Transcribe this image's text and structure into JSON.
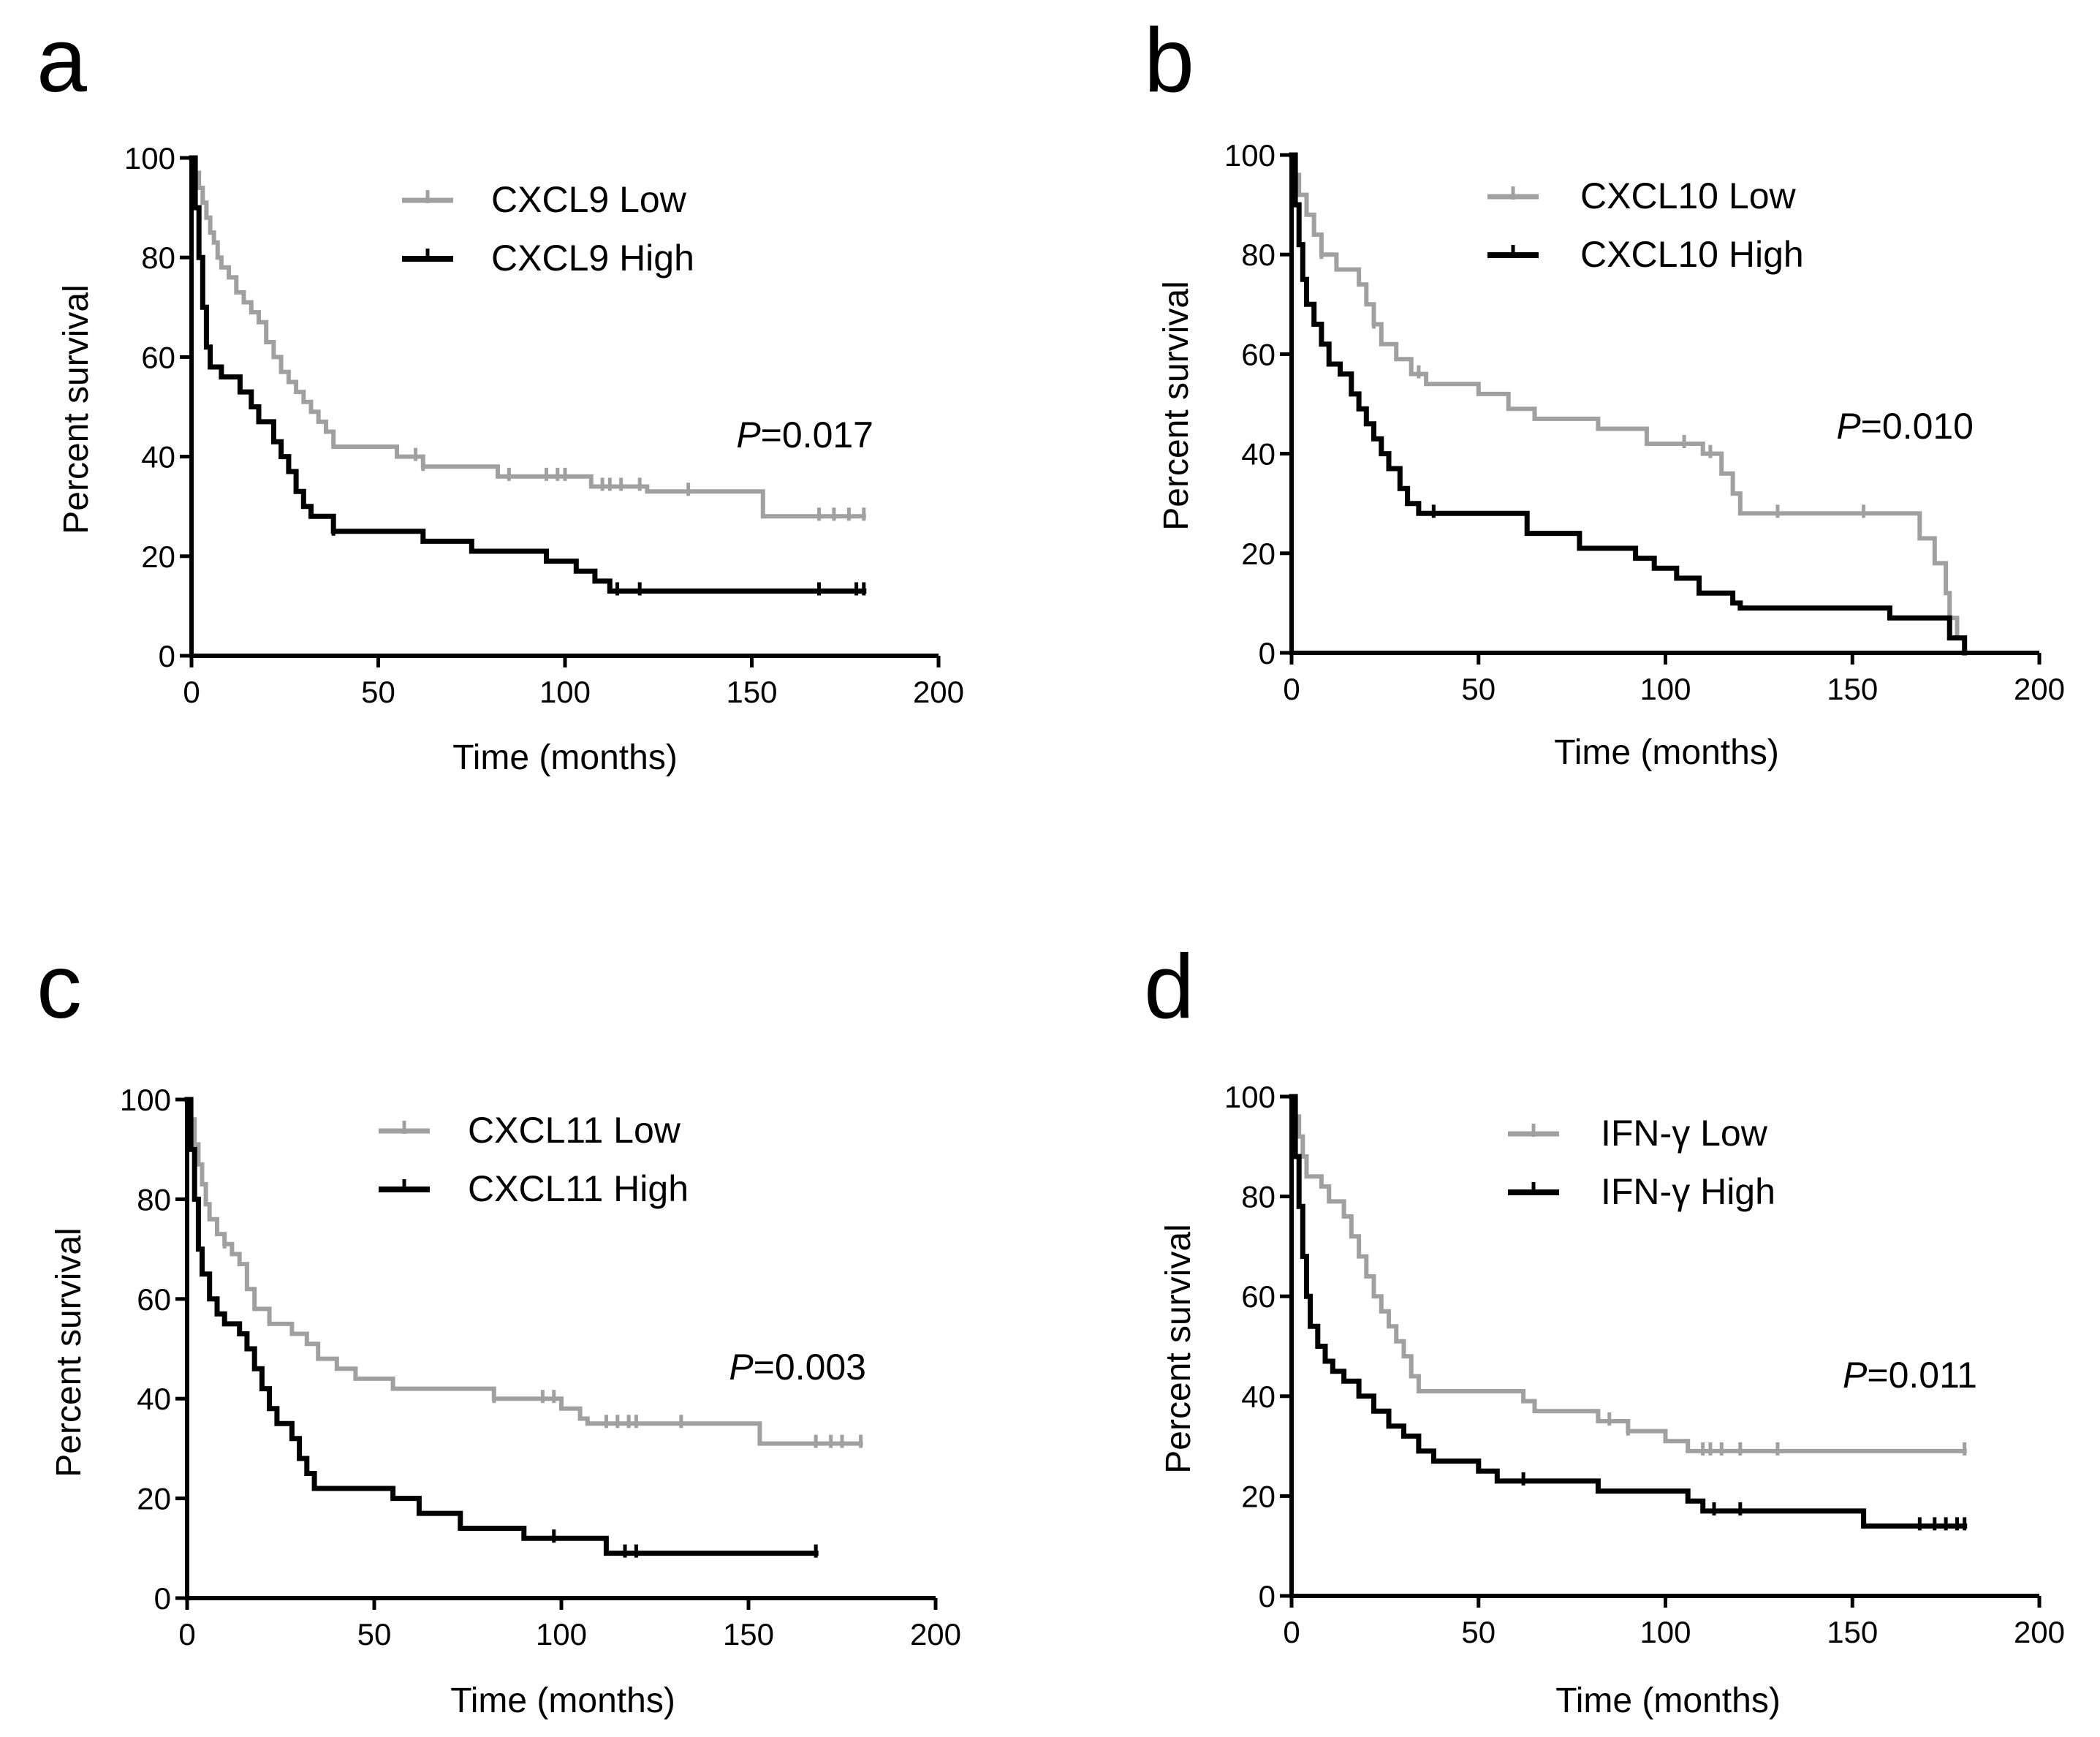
{
  "chart_data": [
    {
      "type": "line",
      "panel": "a",
      "title": "",
      "xlabel": "Time (months)",
      "ylabel": "Percent survival",
      "xlim": [
        0,
        200
      ],
      "ylim": [
        0,
        100
      ],
      "xticks": [
        "0",
        "50",
        "100",
        "150",
        "200"
      ],
      "yticks": [
        "0",
        "20",
        "40",
        "60",
        "80",
        "100"
      ],
      "pvalue": {
        "prefix": "P",
        "text": "=0.017"
      },
      "colors": {
        "low": "#a0a0a0",
        "high": "#000000"
      },
      "series": [
        {
          "name": "CXCL9 Low",
          "color": "#a0a0a0",
          "steps": [
            [
              0,
              100
            ],
            [
              1,
              97
            ],
            [
              2,
              94
            ],
            [
              3,
              91
            ],
            [
              4,
              88
            ],
            [
              5,
              85
            ],
            [
              6,
              83
            ],
            [
              7,
              80
            ],
            [
              8,
              78
            ],
            [
              10,
              76
            ],
            [
              12,
              73
            ],
            [
              14,
              71
            ],
            [
              16,
              69
            ],
            [
              18,
              67
            ],
            [
              20,
              63
            ],
            [
              22,
              60
            ],
            [
              24,
              57
            ],
            [
              26,
              55
            ],
            [
              28,
              53
            ],
            [
              30,
              51
            ],
            [
              32,
              49
            ],
            [
              34,
              47
            ],
            [
              36,
              45
            ],
            [
              38,
              42
            ],
            [
              55,
              40
            ],
            [
              62,
              38
            ],
            [
              82,
              36
            ],
            [
              107,
              34
            ],
            [
              122,
              33
            ],
            [
              153,
              28
            ]
          ],
          "end": 180,
          "censor": [
            60,
            62,
            85,
            95,
            98,
            100,
            110,
            112,
            115,
            120,
            133,
            168,
            172,
            176,
            180
          ]
        },
        {
          "name": "CXCL9 High",
          "color": "#000000",
          "steps": [
            [
              0,
              100
            ],
            [
              1,
              90
            ],
            [
              2,
              80
            ],
            [
              3,
              70
            ],
            [
              4,
              62
            ],
            [
              5,
              58
            ],
            [
              8,
              56
            ],
            [
              13,
              53
            ],
            [
              16,
              50
            ],
            [
              18,
              47
            ],
            [
              22,
              43
            ],
            [
              24,
              40
            ],
            [
              26,
              37
            ],
            [
              28,
              33
            ],
            [
              30,
              30
            ],
            [
              32,
              28
            ],
            [
              38,
              25
            ],
            [
              62,
              23
            ],
            [
              75,
              21
            ],
            [
              95,
              19
            ],
            [
              103,
              17
            ],
            [
              108,
              15
            ],
            [
              112,
              13
            ]
          ],
          "end": 180,
          "censor": [
            38,
            114,
            120,
            168,
            178,
            180
          ]
        }
      ]
    },
    {
      "type": "line",
      "panel": "b",
      "title": "",
      "xlabel": "Time (months)",
      "ylabel": "Percent survival",
      "xlim": [
        0,
        200
      ],
      "ylim": [
        0,
        100
      ],
      "xticks": [
        "0",
        "50",
        "100",
        "150",
        "200"
      ],
      "yticks": [
        "0",
        "20",
        "40",
        "60",
        "80",
        "100"
      ],
      "pvalue": {
        "prefix": "P",
        "text": "=0.010"
      },
      "colors": {
        "low": "#a0a0a0",
        "high": "#000000"
      },
      "series": [
        {
          "name": "CXCL10 Low",
          "color": "#a0a0a0",
          "steps": [
            [
              0,
              100
            ],
            [
              1,
              96
            ],
            [
              2,
              92
            ],
            [
              4,
              88
            ],
            [
              6,
              84
            ],
            [
              8,
              80
            ],
            [
              12,
              77
            ],
            [
              18,
              74
            ],
            [
              20,
              70
            ],
            [
              22,
              66
            ],
            [
              24,
              62
            ],
            [
              28,
              59
            ],
            [
              32,
              56
            ],
            [
              36,
              54
            ],
            [
              50,
              52
            ],
            [
              58,
              49
            ],
            [
              65,
              47
            ],
            [
              82,
              45
            ],
            [
              95,
              42
            ],
            [
              110,
              40
            ],
            [
              115,
              36
            ],
            [
              118,
              32
            ],
            [
              120,
              28
            ],
            [
              168,
              23
            ],
            [
              172,
              18
            ],
            [
              175,
              12
            ],
            [
              176,
              7
            ],
            [
              178,
              3
            ],
            [
              180,
              0
            ]
          ],
          "end": 180,
          "censor": [
            8,
            22,
            34,
            105,
            112,
            130,
            153
          ]
        },
        {
          "name": "CXCL10 High",
          "color": "#000000",
          "steps": [
            [
              0,
              100
            ],
            [
              1,
              90
            ],
            [
              2,
              82
            ],
            [
              3,
              75
            ],
            [
              4,
              70
            ],
            [
              6,
              66
            ],
            [
              8,
              62
            ],
            [
              10,
              58
            ],
            [
              13,
              56
            ],
            [
              16,
              52
            ],
            [
              18,
              49
            ],
            [
              20,
              46
            ],
            [
              22,
              43
            ],
            [
              24,
              40
            ],
            [
              26,
              37
            ],
            [
              29,
              33
            ],
            [
              31,
              30
            ],
            [
              34,
              28
            ],
            [
              63,
              24
            ],
            [
              77,
              21
            ],
            [
              92,
              19
            ],
            [
              97,
              17
            ],
            [
              103,
              15
            ],
            [
              109,
              12
            ],
            [
              118,
              10
            ],
            [
              120,
              9
            ],
            [
              160,
              7
            ],
            [
              176,
              3
            ],
            [
              180,
              0
            ]
          ],
          "end": 180,
          "censor": [
            38
          ]
        }
      ]
    },
    {
      "type": "line",
      "panel": "c",
      "title": "",
      "xlabel": "Time (months)",
      "ylabel": "Percent survival",
      "xlim": [
        0,
        200
      ],
      "ylim": [
        0,
        100
      ],
      "xticks": [
        "0",
        "50",
        "100",
        "150",
        "200"
      ],
      "yticks": [
        "0",
        "20",
        "40",
        "60",
        "80",
        "100"
      ],
      "pvalue": {
        "prefix": "P",
        "text": "=0.003"
      },
      "colors": {
        "low": "#a0a0a0",
        "high": "#000000"
      },
      "series": [
        {
          "name": "CXCL11 Low",
          "color": "#a0a0a0",
          "steps": [
            [
              0,
              100
            ],
            [
              1,
              96
            ],
            [
              2,
              91
            ],
            [
              3,
              87
            ],
            [
              4,
              83
            ],
            [
              5,
              79
            ],
            [
              6,
              76
            ],
            [
              8,
              73
            ],
            [
              10,
              71
            ],
            [
              12,
              69
            ],
            [
              14,
              67
            ],
            [
              16,
              62
            ],
            [
              18,
              58
            ],
            [
              22,
              55
            ],
            [
              28,
              53
            ],
            [
              32,
              51
            ],
            [
              35,
              48
            ],
            [
              40,
              46
            ],
            [
              45,
              44
            ],
            [
              55,
              42
            ],
            [
              82,
              40
            ],
            [
              100,
              38
            ],
            [
              105,
              36
            ],
            [
              107,
              35
            ],
            [
              153,
              31
            ]
          ],
          "end": 180,
          "censor": [
            10,
            82,
            95,
            98,
            112,
            115,
            118,
            120,
            132,
            168,
            172,
            175,
            180
          ]
        },
        {
          "name": "CXCL11 High",
          "color": "#000000",
          "steps": [
            [
              0,
              100
            ],
            [
              1,
              90
            ],
            [
              2,
              80
            ],
            [
              3,
              70
            ],
            [
              4,
              65
            ],
            [
              6,
              60
            ],
            [
              8,
              57
            ],
            [
              10,
              55
            ],
            [
              14,
              53
            ],
            [
              16,
              50
            ],
            [
              18,
              46
            ],
            [
              20,
              42
            ],
            [
              22,
              38
            ],
            [
              24,
              35
            ],
            [
              28,
              32
            ],
            [
              30,
              28
            ],
            [
              32,
              25
            ],
            [
              34,
              22
            ],
            [
              55,
              20
            ],
            [
              62,
              17
            ],
            [
              73,
              14
            ],
            [
              90,
              12
            ],
            [
              112,
              9
            ]
          ],
          "end": 168,
          "censor": [
            98,
            117,
            120,
            168
          ]
        }
      ]
    },
    {
      "type": "line",
      "panel": "d",
      "title": "",
      "xlabel": "Time (months)",
      "ylabel": "Percent survival",
      "xlim": [
        0,
        200
      ],
      "ylim": [
        0,
        100
      ],
      "xticks": [
        "0",
        "50",
        "100",
        "150",
        "200"
      ],
      "yticks": [
        "0",
        "20",
        "40",
        "60",
        "80",
        "100"
      ],
      "pvalue": {
        "prefix": "P",
        "text": "=0.011"
      },
      "colors": {
        "low": "#a0a0a0",
        "high": "#000000"
      },
      "series": [
        {
          "name": "IFN-γ Low",
          "color": "#a0a0a0",
          "steps": [
            [
              0,
              100
            ],
            [
              1,
              96
            ],
            [
              2,
              92
            ],
            [
              3,
              88
            ],
            [
              4,
              84
            ],
            [
              8,
              82
            ],
            [
              10,
              79
            ],
            [
              14,
              76
            ],
            [
              16,
              72
            ],
            [
              18,
              68
            ],
            [
              20,
              64
            ],
            [
              22,
              60
            ],
            [
              24,
              57
            ],
            [
              26,
              54
            ],
            [
              28,
              51
            ],
            [
              30,
              48
            ],
            [
              32,
              44
            ],
            [
              34,
              41
            ],
            [
              62,
              39
            ],
            [
              65,
              37
            ],
            [
              82,
              35
            ],
            [
              90,
              33
            ],
            [
              100,
              31
            ],
            [
              106,
              29
            ]
          ],
          "end": 180,
          "censor": [
            85,
            90,
            110,
            112,
            115,
            120,
            130,
            180
          ]
        },
        {
          "name": "IFN-γ High",
          "color": "#000000",
          "steps": [
            [
              0,
              100
            ],
            [
              1,
              88
            ],
            [
              2,
              78
            ],
            [
              3,
              68
            ],
            [
              4,
              60
            ],
            [
              5,
              54
            ],
            [
              7,
              50
            ],
            [
              9,
              47
            ],
            [
              11,
              45
            ],
            [
              14,
              43
            ],
            [
              18,
              40
            ],
            [
              22,
              37
            ],
            [
              26,
              34
            ],
            [
              30,
              32
            ],
            [
              34,
              29
            ],
            [
              38,
              27
            ],
            [
              50,
              25
            ],
            [
              55,
              23
            ],
            [
              82,
              21
            ],
            [
              106,
              19
            ],
            [
              110,
              17
            ],
            [
              153,
              14
            ]
          ],
          "end": 180,
          "censor": [
            62,
            113,
            120,
            168,
            172,
            175,
            178,
            180
          ]
        }
      ]
    }
  ]
}
